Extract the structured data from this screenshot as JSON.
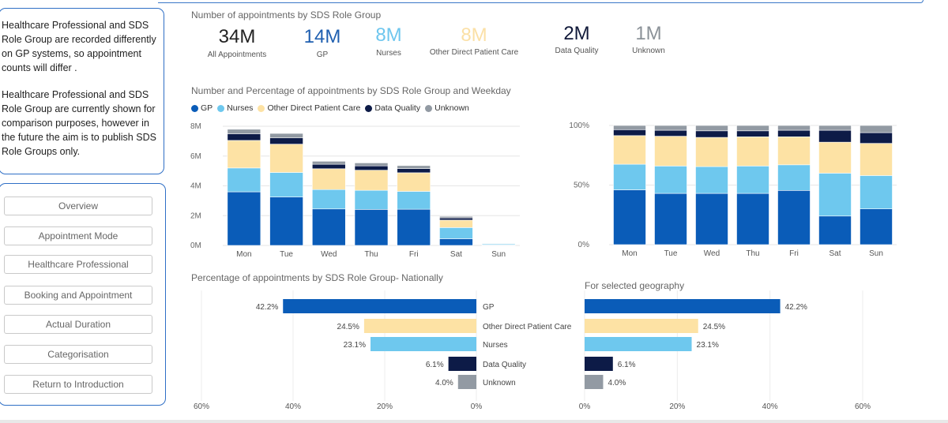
{
  "sidebar": {
    "note1": "Healthcare Professional and SDS\nRole Group are recorded differently\non GP systems, so appointment\ncounts will differ .",
    "note2": "Healthcare Professional and SDS\nRole Group are currently shown for\ncomparison purposes, however in\nthe future the aim is to publish SDS\nRole Groups only.",
    "nav": [
      "Overview",
      "Appointment Mode",
      "Healthcare Professional",
      "Booking and Appointment",
      "Actual Duration",
      "Categorisation",
      "Return to Introduction"
    ]
  },
  "titles": {
    "kpi": "Number of appointments by SDS Role Group",
    "weekday": "Number and Percentage of appointments by SDS Role Group and Weekday",
    "national": "Percentage of appointments by SDS Role Group- Nationally",
    "geography": "For selected geography"
  },
  "kpis": [
    {
      "value": "34M",
      "label": "All Appointments",
      "color": "#222222"
    },
    {
      "value": "14M",
      "label": "GP",
      "color": "#1f5fb0"
    },
    {
      "value": "8M",
      "label": "Nurses",
      "color": "#6ec6ee"
    },
    {
      "value": "8M",
      "label": "Other Direct Patient Care",
      "color": "#fbe0a6"
    },
    {
      "value": "2M",
      "label": "Data Quality",
      "color": "#111a3a"
    },
    {
      "value": "1M",
      "label": "Unknown",
      "color": "#8b9298"
    }
  ],
  "legend": [
    {
      "name": "GP",
      "color": "#0a5cb8"
    },
    {
      "name": "Nurses",
      "color": "#6ec8ee"
    },
    {
      "name": "Other Direct Patient Care",
      "color": "#fde2a4"
    },
    {
      "name": "Data Quality",
      "color": "#0d1b47"
    },
    {
      "name": "Unknown",
      "color": "#929aa3"
    }
  ],
  "chart_data": [
    {
      "type": "bar",
      "title": "Number of appointments by SDS Role Group and Weekday",
      "stacked": true,
      "categories": [
        "Mon",
        "Tue",
        "Wed",
        "Thu",
        "Fri",
        "Sat",
        "Sun"
      ],
      "ylim": [
        0,
        8
      ],
      "yticks": [
        "0M",
        "2M",
        "4M",
        "6M",
        "8M"
      ],
      "series": [
        {
          "name": "GP",
          "color": "#0a5cb8",
          "values": [
            3.6,
            3.25,
            2.45,
            2.42,
            2.43,
            0.45,
            0.03
          ]
        },
        {
          "name": "Nurses",
          "color": "#6ec8ee",
          "values": [
            1.6,
            1.65,
            1.3,
            1.28,
            1.2,
            0.75,
            0.07
          ]
        },
        {
          "name": "Other Direct Patient Care",
          "color": "#fde2a4",
          "values": [
            1.85,
            1.9,
            1.4,
            1.35,
            1.25,
            0.5,
            0.02
          ]
        },
        {
          "name": "Data Quality",
          "color": "#0d1b47",
          "values": [
            0.45,
            0.42,
            0.3,
            0.29,
            0.28,
            0.15,
            0.01
          ]
        },
        {
          "name": "Unknown",
          "color": "#929aa3",
          "values": [
            0.3,
            0.3,
            0.2,
            0.2,
            0.2,
            0.1,
            0.01
          ]
        }
      ]
    },
    {
      "type": "bar",
      "title": "Percentage of appointments by SDS Role Group and Weekday",
      "stacked": true,
      "categories": [
        "Mon",
        "Tue",
        "Wed",
        "Thu",
        "Fri",
        "Sat",
        "Sun"
      ],
      "ylim": [
        0,
        100
      ],
      "yticks": [
        "0%",
        "50%",
        "100%"
      ],
      "series": [
        {
          "name": "GP",
          "color": "#0a5cb8",
          "values": [
            46,
            43,
            43,
            43,
            45.5,
            24,
            30
          ]
        },
        {
          "name": "Nurses",
          "color": "#6ec8ee",
          "values": [
            21.5,
            23,
            22.5,
            23,
            21.5,
            36,
            28
          ]
        },
        {
          "name": "Other Direct Patient Care",
          "color": "#fde2a4",
          "values": [
            24,
            25,
            24.5,
            24.5,
            23.5,
            26,
            27
          ]
        },
        {
          "name": "Data Quality",
          "color": "#0d1b47",
          "values": [
            5,
            5,
            5.5,
            5,
            5.5,
            10,
            9
          ]
        },
        {
          "name": "Unknown",
          "color": "#929aa3",
          "values": [
            3.5,
            4,
            4.5,
            4.5,
            4,
            4,
            6
          ]
        }
      ]
    },
    {
      "type": "bar",
      "orientation": "horizontal",
      "title": "Percentage of appointments by SDS Role Group- Nationally",
      "categories": [
        "GP",
        "Other Direct Patient Care",
        "Nurses",
        "Data Quality",
        "Unknown"
      ],
      "values": [
        42.2,
        24.5,
        23.1,
        6.1,
        4.0
      ],
      "data_labels": [
        "42.2%",
        "24.5%",
        "23.1%",
        "6.1%",
        "4.0%"
      ],
      "colors": [
        "#0a5cb8",
        "#fde2a4",
        "#6ec8ee",
        "#0d1b47",
        "#929aa3"
      ],
      "xlim": [
        0,
        60
      ],
      "xticks": [
        "60%",
        "40%",
        "20%",
        "0%"
      ]
    },
    {
      "type": "bar",
      "orientation": "horizontal",
      "title": "For selected geography",
      "categories": [
        "GP",
        "Other Direct Patient Care",
        "Nurses",
        "Data Quality",
        "Unknown"
      ],
      "values": [
        42.2,
        24.5,
        23.1,
        6.1,
        4.0
      ],
      "data_labels": [
        "42.2%",
        "24.5%",
        "23.1%",
        "6.1%",
        "4.0%"
      ],
      "colors": [
        "#0a5cb8",
        "#fde2a4",
        "#6ec8ee",
        "#0d1b47",
        "#929aa3"
      ],
      "xlim": [
        0,
        60
      ],
      "xticks": [
        "0%",
        "20%",
        "40%",
        "60%"
      ]
    }
  ]
}
